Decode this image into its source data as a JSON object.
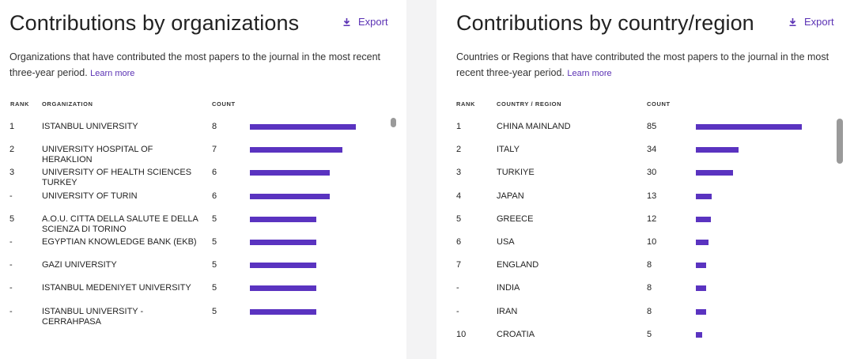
{
  "org_panel": {
    "title": "Contributions by organizations",
    "export_label": "Export",
    "description": "Organizations that have contributed the most papers to the journal in the most recent three-year period.",
    "learn_more": "Learn more",
    "headers": {
      "rank": "RANK",
      "name": "ORGANIZATION",
      "count": "COUNT"
    },
    "max_count": 8,
    "rows": [
      {
        "rank": "1",
        "name": "ISTANBUL UNIVERSITY",
        "count": 8
      },
      {
        "rank": "2",
        "name": "UNIVERSITY HOSPITAL OF HERAKLION",
        "count": 7
      },
      {
        "rank": "3",
        "name": "UNIVERSITY OF HEALTH SCIENCES TURKEY",
        "count": 6
      },
      {
        "rank": "-",
        "name": "UNIVERSITY OF TURIN",
        "count": 6
      },
      {
        "rank": "5",
        "name": "A.O.U. CITTA DELLA SALUTE E DELLA SCIENZA DI TORINO",
        "count": 5
      },
      {
        "rank": "-",
        "name": "EGYPTIAN KNOWLEDGE BANK (EKB)",
        "count": 5
      },
      {
        "rank": "-",
        "name": "GAZI UNIVERSITY",
        "count": 5
      },
      {
        "rank": "-",
        "name": "ISTANBUL MEDENIYET UNIVERSITY",
        "count": 5
      },
      {
        "rank": "-",
        "name": "ISTANBUL UNIVERSITY - CERRAHPASA",
        "count": 5
      }
    ]
  },
  "country_panel": {
    "title": "Contributions by country/region",
    "export_label": "Export",
    "description": "Countries or Regions that have contributed the most papers to the journal in the most recent three-year period.",
    "learn_more": "Learn more",
    "headers": {
      "rank": "RANK",
      "name": "COUNTRY / REGION",
      "count": "COUNT"
    },
    "max_count": 85,
    "rows": [
      {
        "rank": "1",
        "name": "CHINA MAINLAND",
        "count": 85
      },
      {
        "rank": "2",
        "name": "ITALY",
        "count": 34
      },
      {
        "rank": "3",
        "name": "TURKIYE",
        "count": 30
      },
      {
        "rank": "4",
        "name": "JAPAN",
        "count": 13
      },
      {
        "rank": "5",
        "name": "GREECE",
        "count": 12
      },
      {
        "rank": "6",
        "name": "USA",
        "count": 10
      },
      {
        "rank": "7",
        "name": "ENGLAND",
        "count": 8
      },
      {
        "rank": "-",
        "name": "INDIA",
        "count": 8
      },
      {
        "rank": "-",
        "name": "IRAN",
        "count": 8
      },
      {
        "rank": "10",
        "name": "CROATIA",
        "count": 5
      }
    ]
  },
  "colors": {
    "accent": "#5b32b4",
    "bar": "#5a33c0"
  },
  "icons": {
    "export": "download-icon"
  }
}
